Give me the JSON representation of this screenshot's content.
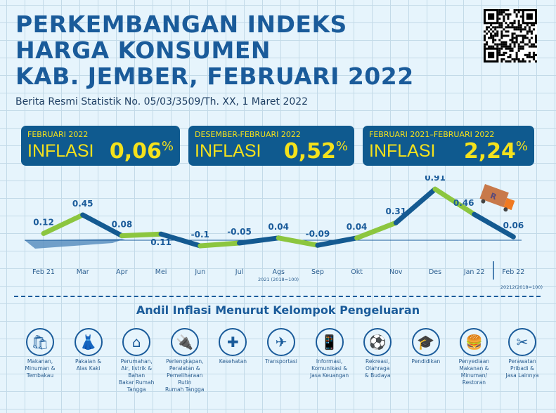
{
  "header": {
    "title_lines": [
      "PERKEMBANGAN INDEKS",
      "HARGA KONSUMEN",
      "KAB. JEMBER, FEBRUARI 2022"
    ],
    "subtitle": "Berita Resmi Statistik No. 05/03/3509/Th. XX, 1 Maret 2022"
  },
  "boxes": [
    {
      "period": "FEBRUARI 2022",
      "label": "INFLASI",
      "value": "0,06",
      "unit": "%"
    },
    {
      "period": "DESEMBER-FEBRUARI 2022",
      "label": "INFLASI",
      "value": "0,52",
      "unit": "%"
    },
    {
      "period": "FEBRUARI 2021–FEBRUARI 2022",
      "label": "INFLASI",
      "value": "2,24",
      "unit": "%"
    }
  ],
  "colors": {
    "title": "#1a5b9a",
    "box": "#0f5a8f",
    "highlight": "#f4e11c",
    "line_dark": "#145a91",
    "line_green": "#8cc63f"
  },
  "chart_data": {
    "type": "line",
    "categories": [
      "Feb 21",
      "Mar",
      "Apr",
      "Mei",
      "Jun",
      "Jul",
      "Ags",
      "Sep",
      "Okt",
      "Nov",
      "Des",
      "Jan 22",
      "Feb 22"
    ],
    "values": [
      0.12,
      0.45,
      0.08,
      0.11,
      -0.1,
      -0.05,
      0.04,
      -0.09,
      0.04,
      0.31,
      0.91,
      0.46,
      0.06
    ],
    "value_labels": [
      "0.12",
      "0.45",
      "0.08",
      "0.11",
      "-0.1",
      "-0.05",
      "0.04",
      "-0.09",
      "0.04",
      "0.31",
      "0.91",
      "0.46",
      "0.06"
    ],
    "notes": [
      "2021 (2018=100)",
      "20212(2018=100)"
    ],
    "grid": true
  },
  "andil": {
    "title": "Andil Inflasi Menurut Kelompok Pengeluaran",
    "groups": [
      {
        "label": "Makanan,\nMinuman &\nTembakau",
        "icon": "grocery-bag-icon",
        "glyph": "🛍"
      },
      {
        "label": "Pakaian &\nAlas Kaki",
        "icon": "dress-icon",
        "glyph": "👗"
      },
      {
        "label": "Perumahan,\nAir, listrik &\nBahan\nBakar Rumah\nTangga",
        "icon": "house-icon",
        "glyph": "⌂"
      },
      {
        "label": "Perlengkapan,\nPeralatan &\nPemeliharaan\nRutin\nRumah Tangga",
        "icon": "power-plug-icon",
        "glyph": "🔌"
      },
      {
        "label": "Kesehatan",
        "icon": "medical-kit-icon",
        "glyph": "✚"
      },
      {
        "label": "Transportasi",
        "icon": "airplane-icon",
        "glyph": "✈"
      },
      {
        "label": "Informasi,\nKomunikasi &\nJasa Keuangan",
        "icon": "smartphone-icon",
        "glyph": "📱"
      },
      {
        "label": "Rekreasi,\nOlahraga\n& Budaya",
        "icon": "football-player-icon",
        "glyph": "⚽"
      },
      {
        "label": "Pendidikan",
        "icon": "graduation-cap-icon",
        "glyph": "🎓"
      },
      {
        "label": "Penyediaan\nMakanan &\nMinuman/\nRestoran",
        "icon": "burger-drink-icon",
        "glyph": "🍔"
      },
      {
        "label": "Perawatan\nPribadi &\nJasa Lainnya",
        "icon": "scissors-comb-icon",
        "glyph": "✂"
      }
    ]
  }
}
